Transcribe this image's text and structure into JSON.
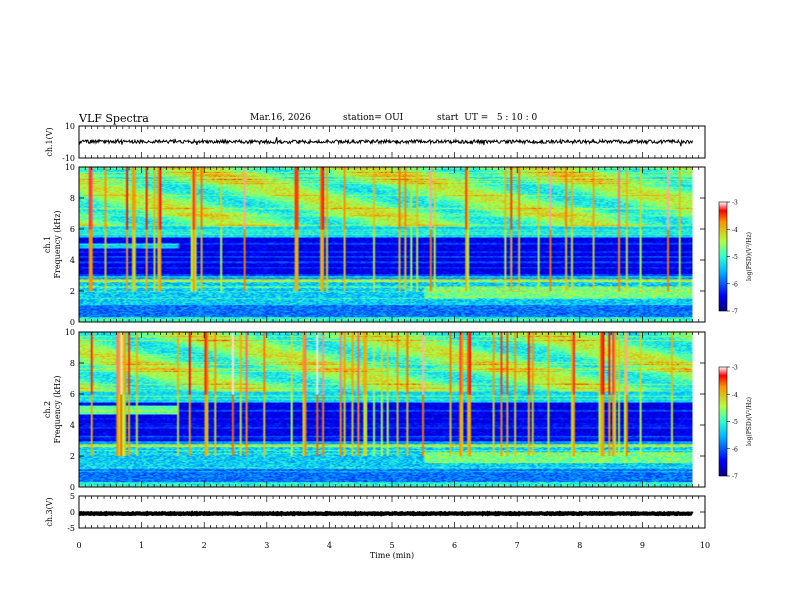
{
  "header": {
    "title": "VLF Spectra",
    "date": "Mar.16, 2026",
    "station": "station= OUI",
    "start_ut": "start  UT =   5 : 10 : 0"
  },
  "chart_data": [
    {
      "type": "line",
      "panel": "ch1-waveform",
      "ylabel": "ch.1(V)",
      "ylim": [
        -10,
        10
      ],
      "yticks": [
        "10",
        "-10"
      ],
      "baseline": 0.2,
      "xlim": [
        0,
        10
      ]
    },
    {
      "type": "heatmap",
      "panel": "ch1-spectrogram",
      "ylabel_channel": "ch.1",
      "ylabel": "Frequency  (kHz)",
      "ylim": [
        0,
        10
      ],
      "yticks": [
        "0",
        "2",
        "4",
        "6",
        "8",
        "10"
      ],
      "xlim": [
        0,
        10
      ],
      "colorbar": {
        "label": "log(PSD)(V²/Hz)",
        "range": [
          -7,
          -3
        ],
        "ticks": [
          "-3",
          "-4",
          "-5",
          "-6",
          "-7"
        ]
      }
    },
    {
      "type": "heatmap",
      "panel": "ch2-spectrogram",
      "ylabel_channel": "ch.2",
      "ylabel": "Frequency  (kHz)",
      "ylim": [
        0,
        10
      ],
      "yticks": [
        "0",
        "2",
        "4",
        "6",
        "8",
        "10"
      ],
      "xlim": [
        0,
        10
      ],
      "colorbar": {
        "label": "log(PSD)(V²/Hz)",
        "range": [
          -7,
          -3
        ],
        "ticks": [
          "-3",
          "-4",
          "-5",
          "-6",
          "-7"
        ]
      }
    },
    {
      "type": "line",
      "panel": "ch3-waveform",
      "ylabel": "ch.3(V)",
      "ylim": [
        -5,
        5
      ],
      "yticks": [
        "5",
        "0",
        "-5"
      ],
      "baseline": -0.5,
      "xlim": [
        0,
        10
      ],
      "xlabel": "Time  (min)",
      "xticks": [
        "0",
        "1",
        "2",
        "3",
        "4",
        "5",
        "6",
        "7",
        "8",
        "9",
        "10"
      ]
    }
  ]
}
